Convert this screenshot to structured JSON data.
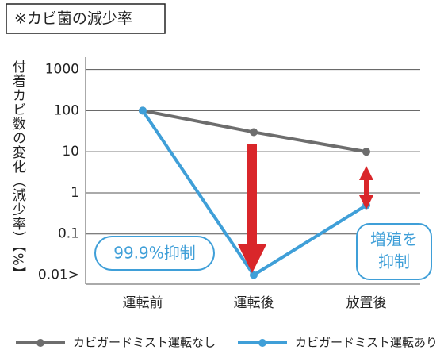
{
  "chart_data": {
    "type": "line",
    "title": "※カビ菌の減少率",
    "y_label": "付着カビ数の変化（減少率）【%】",
    "categories": [
      "運転前",
      "運転後",
      "放置後"
    ],
    "series": [
      {
        "name": "カビガードミスト運転なし",
        "color": "#6d6d6d",
        "values": [
          100,
          30,
          10
        ]
      },
      {
        "name": "カビガードミスト運転あり",
        "color": "#3f9fd8",
        "values": [
          100,
          0.01,
          0.5
        ]
      }
    ],
    "log_scale": true,
    "grid": true,
    "ylim": [
      0.006,
      2000
    ],
    "yticks": [
      1000,
      100,
      10,
      1,
      0.1,
      {
        "value": 0.01,
        "label": "0.01>"
      }
    ],
    "annotations": [
      {
        "text": "99.9%抑制"
      },
      {
        "lines": [
          "増殖を",
          "抑制"
        ]
      }
    ],
    "legend": "bottom"
  }
}
